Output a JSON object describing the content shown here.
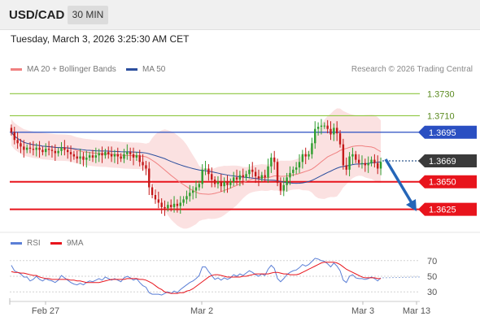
{
  "header": {
    "symbol": "USD/CAD",
    "timeframe": "30 MIN"
  },
  "datetime": "Tuesday, March 3, 2026 3:25:30 AM CET",
  "legend": {
    "ma20_bb": "MA 20 + Bollinger Bands",
    "ma50": "MA 50",
    "rsi": "RSI",
    "ma9": "9MA"
  },
  "copyright": "Research © 2026 Trading Central",
  "colors": {
    "ma20": "#f08080",
    "ma50": "#2c4f9e",
    "bollinger_fill": "#fbe1e1",
    "resistance_green": "#8dc63f",
    "pivot_blue": "#2a4fc2",
    "support_red": "#e8141c",
    "candle_up": "#2e9d2e",
    "candle_down": "#c41a1a",
    "current_price_bg": "#3a3a3a",
    "arrow": "#2566b8",
    "rsi_line": "#5b7fd6",
    "rsi_ma9": "#e8141c"
  },
  "chart_data": [
    {
      "type": "candlestick",
      "title": "USD/CAD",
      "timeframe": "30 MIN",
      "x_ticks": [
        "Feb 27",
        "Mar 2",
        "Mar 3",
        "Mar 13"
      ],
      "ylim": [
        1.3607,
        1.3745
      ],
      "levels": [
        {
          "label": "1.3730",
          "value": 1.373,
          "kind": "resistance",
          "color": "#8dc63f"
        },
        {
          "label": "1.3710",
          "value": 1.371,
          "kind": "resistance",
          "color": "#8dc63f"
        },
        {
          "label": "1.3695",
          "value": 1.3695,
          "kind": "pivot",
          "color": "#2a4fc2"
        },
        {
          "label": "1.3669",
          "value": 1.3669,
          "kind": "current",
          "color": "#3a3a3a"
        },
        {
          "label": "1.3650",
          "value": 1.365,
          "kind": "support",
          "color": "#e8141c"
        },
        {
          "label": "1.3625",
          "value": 1.3625,
          "kind": "support",
          "color": "#e8141c"
        }
      ],
      "close_approx": [
        1.3695,
        1.3688,
        1.3685,
        1.3682,
        1.3679,
        1.3681,
        1.368,
        1.3679,
        1.3681,
        1.3679,
        1.3677,
        1.368,
        1.3679,
        1.3678,
        1.3676,
        1.3678,
        1.3681,
        1.3679,
        1.3677,
        1.3675,
        1.3673,
        1.3671,
        1.3673,
        1.367,
        1.3672,
        1.3674,
        1.3672,
        1.3674,
        1.3676,
        1.3674,
        1.3677,
        1.3675,
        1.3673,
        1.3675,
        1.3673,
        1.3671,
        1.3675,
        1.3677,
        1.3675,
        1.3672,
        1.3674,
        1.3668,
        1.3665,
        1.3662,
        1.3645,
        1.3638,
        1.3634,
        1.3631,
        1.3627,
        1.3626,
        1.3629,
        1.3627,
        1.363,
        1.3628,
        1.3631,
        1.3634,
        1.3637,
        1.364,
        1.3642,
        1.3645,
        1.3648,
        1.3661,
        1.3662,
        1.3657,
        1.3652,
        1.3648,
        1.365,
        1.3646,
        1.365,
        1.3647,
        1.365,
        1.3654,
        1.3652,
        1.3656,
        1.3654,
        1.3657,
        1.3661,
        1.3659,
        1.3655,
        1.3653,
        1.3656,
        1.3654,
        1.3664,
        1.3672,
        1.3668,
        1.3649,
        1.3642,
        1.3647,
        1.3654,
        1.3658,
        1.3661,
        1.3663,
        1.3668,
        1.3675,
        1.3673,
        1.3675,
        1.3685,
        1.3698,
        1.37,
        1.3701,
        1.3701,
        1.3698,
        1.3693,
        1.3699,
        1.3694,
        1.3684,
        1.3665,
        1.3661,
        1.3673,
        1.3675,
        1.367,
        1.3667,
        1.3667,
        1.3665,
        1.3667,
        1.367,
        1.3667,
        1.3662,
        1.3668
      ],
      "series": [
        {
          "name": "MA 20 + Bollinger Bands",
          "color": "#f08080"
        },
        {
          "name": "MA 50",
          "color": "#2c4f9e"
        }
      ],
      "legend": "top-left",
      "grid": false
    },
    {
      "type": "line",
      "title": "RSI",
      "y_ticks": [
        70,
        50,
        30
      ],
      "ylim": [
        24,
        76
      ],
      "series": [
        {
          "name": "RSI",
          "color": "#5b7fd6",
          "values": [
            64,
            57,
            55,
            53,
            49,
            49,
            44,
            46,
            50,
            46,
            44,
            47,
            45,
            44,
            42,
            45,
            51,
            48,
            45,
            42,
            40,
            39,
            41,
            39,
            42,
            44,
            43,
            45,
            47,
            45,
            49,
            47,
            45,
            47,
            45,
            43,
            48,
            50,
            48,
            45,
            47,
            42,
            38,
            36,
            29,
            27,
            27,
            27,
            26,
            28,
            30,
            28,
            31,
            29,
            33,
            36,
            39,
            42,
            44,
            47,
            51,
            62,
            62,
            56,
            51,
            46,
            48,
            45,
            48,
            46,
            48,
            52,
            50,
            53,
            51,
            54,
            57,
            55,
            52,
            50,
            53,
            51,
            59,
            64,
            60,
            47,
            43,
            47,
            52,
            55,
            57,
            58,
            61,
            65,
            63,
            65,
            69,
            73,
            72,
            70,
            69,
            66,
            62,
            67,
            63,
            57,
            45,
            42,
            50,
            52,
            48,
            47,
            47,
            46,
            47,
            49,
            47,
            44,
            48
          ]
        },
        {
          "name": "9MA",
          "color": "#e8141c",
          "values": [
            56,
            55,
            55,
            54,
            54,
            53,
            52,
            51,
            51,
            49,
            48,
            47,
            47,
            46,
            46,
            46,
            46,
            46,
            46,
            45,
            45,
            44,
            44,
            43,
            42,
            42,
            42,
            42,
            42,
            43,
            44,
            45,
            46,
            46,
            46,
            46,
            46,
            47,
            47,
            47,
            47,
            46,
            46,
            45,
            43,
            41,
            38,
            35,
            33,
            30,
            29,
            28,
            28,
            28,
            29,
            29,
            31,
            32,
            34,
            37,
            40,
            43,
            46,
            49,
            51,
            52,
            52,
            51,
            50,
            49,
            49,
            49,
            49,
            49,
            50,
            50,
            51,
            52,
            53,
            53,
            53,
            53,
            53,
            54,
            55,
            55,
            54,
            53,
            53,
            52,
            52,
            52,
            53,
            55,
            57,
            59,
            61,
            63,
            65,
            67,
            68,
            68,
            68,
            68,
            67,
            65,
            62,
            59,
            57,
            55,
            53,
            51,
            49,
            48,
            48,
            48,
            48,
            47,
            47
          ]
        }
      ],
      "legend": "top-left",
      "grid": false
    }
  ]
}
